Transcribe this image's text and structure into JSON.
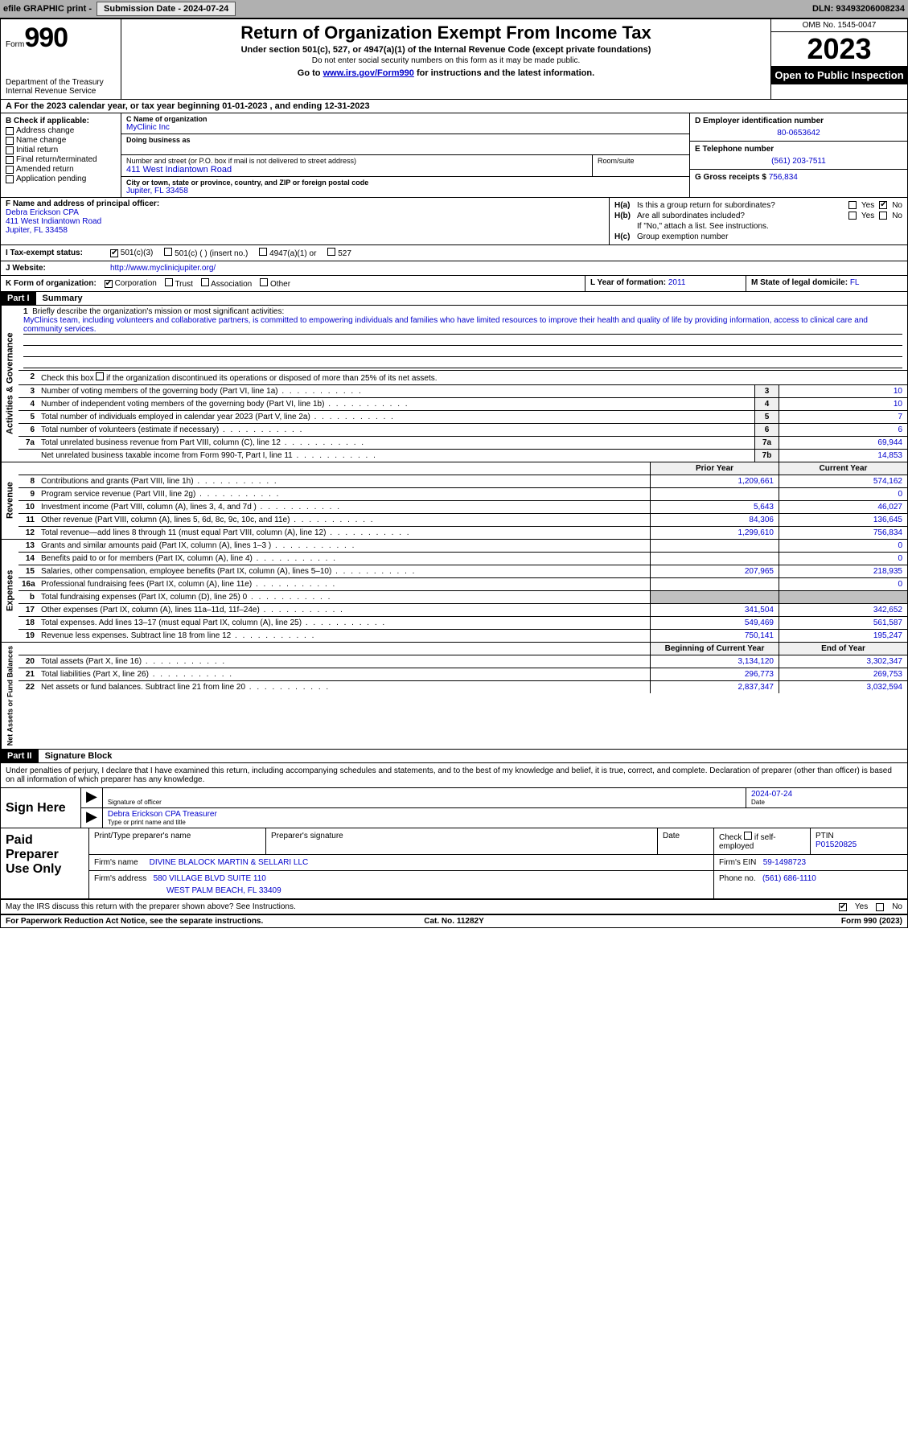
{
  "topbar": {
    "efile": "efile GRAPHIC print -",
    "submission": "Submission Date - 2024-07-24",
    "dln": "DLN: 93493206008234"
  },
  "header": {
    "form_word": "Form",
    "form_num": "990",
    "title": "Return of Organization Exempt From Income Tax",
    "sub": "Under section 501(c), 527, or 4947(a)(1) of the Internal Revenue Code (except private foundations)",
    "sub2": "Do not enter social security numbers on this form as it may be made public.",
    "goto_pre": "Go to ",
    "goto_link": "www.irs.gov/Form990",
    "goto_post": " for instructions and the latest information.",
    "dept": "Department of the Treasury\nInternal Revenue Service",
    "omb": "OMB No. 1545-0047",
    "year": "2023",
    "open": "Open to Public Inspection"
  },
  "row_a": "A For the 2023 calendar year, or tax year beginning 01-01-2023    , and ending 12-31-2023",
  "col_b": {
    "hdr": "B Check if applicable:",
    "o1": "Address change",
    "o2": "Name change",
    "o3": "Initial return",
    "o4": "Final return/terminated",
    "o5": "Amended return",
    "o6": "Application pending"
  },
  "col_c": {
    "name_lbl": "C Name of organization",
    "name": "MyClinic Inc",
    "dba_lbl": "Doing business as",
    "addr_lbl": "Number and street (or P.O. box if mail is not delivered to street address)",
    "addr": "411 West Indiantown Road",
    "room_lbl": "Room/suite",
    "city_lbl": "City or town, state or province, country, and ZIP or foreign postal code",
    "city": "Jupiter, FL  33458"
  },
  "col_d": {
    "ein_lbl": "D Employer identification number",
    "ein": "80-0653642",
    "tel_lbl": "E Telephone number",
    "tel": "(561) 203-7511",
    "gross_lbl": "G Gross receipts $",
    "gross": "756,834"
  },
  "col_f": {
    "lbl": "F Name and address of principal officer:",
    "l1": "Debra Erickson CPA",
    "l2": "411 West Indiantown Road",
    "l3": "Jupiter, FL  33458"
  },
  "col_h": {
    "ha": "H(a)",
    "ha_txt": "Is this a group return for subordinates?",
    "hb": "H(b)",
    "hb_txt": "Are all subordinates included?",
    "hb_note": "If \"No,\" attach a list. See instructions.",
    "hc": "H(c)",
    "hc_txt": "Group exemption number",
    "yes": "Yes",
    "no": "No"
  },
  "row_i": {
    "lbl": "I    Tax-exempt status:",
    "o1": "501(c)(3)",
    "o2": "501(c) (  ) (insert no.)",
    "o3": "4947(a)(1) or",
    "o4": "527"
  },
  "row_j": {
    "lbl": "J   Website:",
    "val": "http://www.myclinicjupiter.org/"
  },
  "row_k": {
    "lbl": "K Form of organization:",
    "o1": "Corporation",
    "o2": "Trust",
    "o3": "Association",
    "o4": "Other"
  },
  "row_lm": {
    "l_lbl": "L Year of formation:",
    "l_val": "2011",
    "m_lbl": "M State of legal domicile:",
    "m_val": "FL"
  },
  "part1": {
    "hdr": "Part I",
    "title": "Summary"
  },
  "vtabs": {
    "ag": "Activities & Governance",
    "rev": "Revenue",
    "exp": "Expenses",
    "net": "Net Assets or Fund Balances"
  },
  "mission": {
    "n": "1",
    "lbl": "Briefly describe the organization's mission or most significant activities:",
    "txt": "MyClinics team, including volunteers and collaborative partners, is committed to empowering individuals and families who have limited resources to improve their health and quality of life by providing information, access to clinical care and community services."
  },
  "line2": "Check this box         if the organization discontinued its operations or disposed of more than 25% of its net assets.",
  "ag_lines": [
    {
      "n": "3",
      "t": "Number of voting members of the governing body (Part VI, line 1a)",
      "b": "3",
      "v": "10"
    },
    {
      "n": "4",
      "t": "Number of independent voting members of the governing body (Part VI, line 1b)",
      "b": "4",
      "v": "10"
    },
    {
      "n": "5",
      "t": "Total number of individuals employed in calendar year 2023 (Part V, line 2a)",
      "b": "5",
      "v": "7"
    },
    {
      "n": "6",
      "t": "Total number of volunteers (estimate if necessary)",
      "b": "6",
      "v": "6"
    },
    {
      "n": "7a",
      "t": "Total unrelated business revenue from Part VIII, column (C), line 12",
      "b": "7a",
      "v": "69,944"
    },
    {
      "n": "",
      "t": "Net unrelated business taxable income from Form 990-T, Part I, line 11",
      "b": "7b",
      "v": "14,853"
    }
  ],
  "two_col_hdr": {
    "py": "Prior Year",
    "cy": "Current Year"
  },
  "rev_lines": [
    {
      "n": "8",
      "t": "Contributions and grants (Part VIII, line 1h)",
      "p": "1,209,661",
      "c": "574,162"
    },
    {
      "n": "9",
      "t": "Program service revenue (Part VIII, line 2g)",
      "p": "",
      "c": "0"
    },
    {
      "n": "10",
      "t": "Investment income (Part VIII, column (A), lines 3, 4, and 7d )",
      "p": "5,643",
      "c": "46,027"
    },
    {
      "n": "11",
      "t": "Other revenue (Part VIII, column (A), lines 5, 6d, 8c, 9c, 10c, and 11e)",
      "p": "84,306",
      "c": "136,645"
    },
    {
      "n": "12",
      "t": "Total revenue—add lines 8 through 11 (must equal Part VIII, column (A), line 12)",
      "p": "1,299,610",
      "c": "756,834"
    }
  ],
  "exp_lines": [
    {
      "n": "13",
      "t": "Grants and similar amounts paid (Part IX, column (A), lines 1–3 )",
      "p": "",
      "c": "0"
    },
    {
      "n": "14",
      "t": "Benefits paid to or for members (Part IX, column (A), line 4)",
      "p": "",
      "c": "0"
    },
    {
      "n": "15",
      "t": "Salaries, other compensation, employee benefits (Part IX, column (A), lines 5–10)",
      "p": "207,965",
      "c": "218,935"
    },
    {
      "n": "16a",
      "t": "Professional fundraising fees (Part IX, column (A), line 11e)",
      "p": "",
      "c": "0"
    },
    {
      "n": "b",
      "t": "Total fundraising expenses (Part IX, column (D), line 25) 0",
      "p": "SHADE",
      "c": "SHADE"
    },
    {
      "n": "17",
      "t": "Other expenses (Part IX, column (A), lines 11a–11d, 11f–24e)",
      "p": "341,504",
      "c": "342,652"
    },
    {
      "n": "18",
      "t": "Total expenses. Add lines 13–17 (must equal Part IX, column (A), line 25)",
      "p": "549,469",
      "c": "561,587"
    },
    {
      "n": "19",
      "t": "Revenue less expenses. Subtract line 18 from line 12",
      "p": "750,141",
      "c": "195,247"
    }
  ],
  "net_hdr": {
    "b": "Beginning of Current Year",
    "e": "End of Year"
  },
  "net_lines": [
    {
      "n": "20",
      "t": "Total assets (Part X, line 16)",
      "p": "3,134,120",
      "c": "3,302,347"
    },
    {
      "n": "21",
      "t": "Total liabilities (Part X, line 26)",
      "p": "296,773",
      "c": "269,753"
    },
    {
      "n": "22",
      "t": "Net assets or fund balances. Subtract line 21 from line 20",
      "p": "2,837,347",
      "c": "3,032,594"
    }
  ],
  "part2": {
    "hdr": "Part II",
    "title": "Signature Block"
  },
  "sig_intro": "Under penalties of perjury, I declare that I have examined this return, including accompanying schedules and statements, and to the best of my knowledge and belief, it is true, correct, and complete. Declaration of preparer (other than officer) is based on all information of which preparer has any knowledge.",
  "sign": {
    "here": "Sign Here",
    "date": "2024-07-24",
    "sig_lbl": "Signature of officer",
    "officer": "Debra Erickson CPA Treasurer",
    "type_lbl": "Type or print name and title",
    "date_lbl": "Date"
  },
  "prep": {
    "hdr": "Paid Preparer Use Only",
    "name_lbl": "Print/Type preparer's name",
    "sig_lbl": "Preparer's signature",
    "date_lbl": "Date",
    "check_lbl": "Check        if self-employed",
    "ptin_lbl": "PTIN",
    "ptin": "P01520825",
    "firm_name_lbl": "Firm's name",
    "firm_name": "DIVINE BLALOCK MARTIN & SELLARI LLC",
    "firm_ein_lbl": "Firm's EIN",
    "firm_ein": "59-1498723",
    "firm_addr_lbl": "Firm's address",
    "firm_addr1": "580 VILLAGE BLVD SUITE 110",
    "firm_addr2": "WEST PALM BEACH, FL  33409",
    "phone_lbl": "Phone no.",
    "phone": "(561) 686-1110"
  },
  "discuss": {
    "txt": "May the IRS discuss this return with the preparer shown above? See Instructions.",
    "yes": "Yes",
    "no": "No"
  },
  "footer": {
    "l": "For Paperwork Reduction Act Notice, see the separate instructions.",
    "c": "Cat. No. 11282Y",
    "r": "Form 990 (2023)"
  },
  "style": {
    "link_color": "#0000cc",
    "bg": "#ffffff",
    "border": "#000000",
    "topbar_bg": "#b0b0b0"
  }
}
